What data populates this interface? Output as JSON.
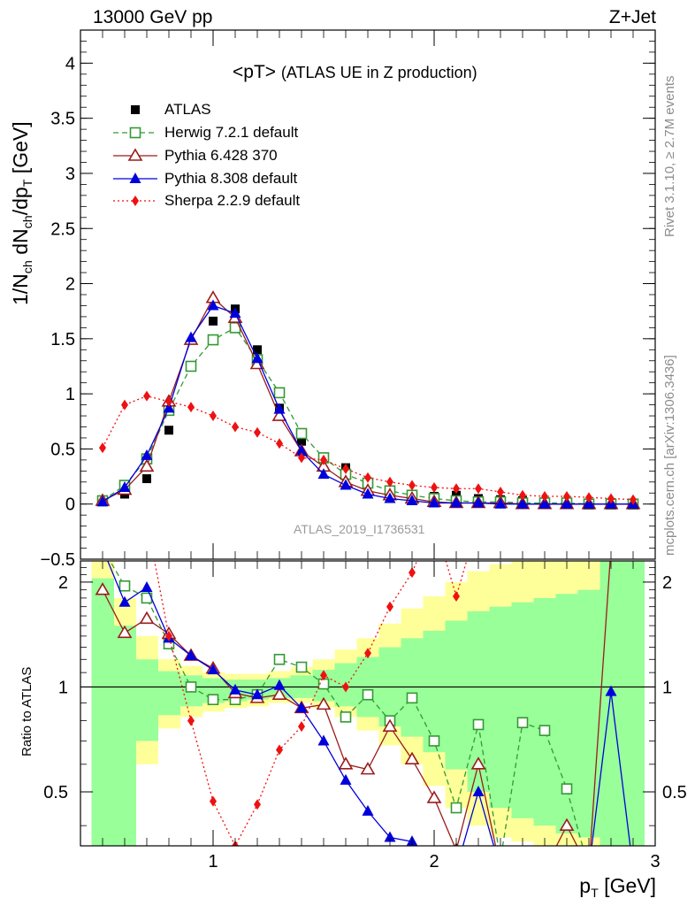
{
  "header": {
    "left": "13000 GeV pp",
    "right": "Z+Jet"
  },
  "plot_title": {
    "main": "<pT>",
    "sub": "(ATLAS UE in Z production)"
  },
  "watermark": "ATLAS_2019_I1736531",
  "side_text": {
    "rivet": "Rivet 3.1.10, ≥ 2.7M events",
    "mcplots": "mcplots.cern.ch [arXiv:1306.3436]"
  },
  "y_label_main": {
    "a": "1/N",
    "a_sub": "ch",
    "b": " dN",
    "b_sub": "ch",
    "c": "/dp",
    "c_sub": "T",
    "unit": " [GeV]"
  },
  "y_label_ratio": "Ratio to ATLAS",
  "x_label": {
    "p": "p",
    "sub": "T",
    "unit": " [GeV]"
  },
  "colors": {
    "atlas": "#000000",
    "herwig": "#339933",
    "pythia6": "#9b1c1c",
    "pythia8": "#0000dd",
    "sherpa": "#ee1111",
    "band_inner": "#99ff99",
    "band_outer": "#ffff99"
  },
  "chart_data": [
    {
      "type": "scatter",
      "panel": "main",
      "xlim": [
        0.4,
        3.0
      ],
      "ylim": [
        -0.5,
        4.3
      ],
      "x_ticks": [
        "1",
        "2",
        "3"
      ],
      "y_ticks": [
        "−0.5",
        "0",
        "0.5",
        "1",
        "1.5",
        "2",
        "2.5",
        "3",
        "3.5",
        "4"
      ],
      "x": [
        0.5,
        0.6,
        0.7,
        0.8,
        0.9,
        1.0,
        1.1,
        1.2,
        1.3,
        1.4,
        1.5,
        1.6,
        1.7,
        1.8,
        1.9,
        2.0,
        2.1,
        2.2,
        2.3,
        2.4,
        2.5,
        2.6,
        2.7,
        2.8,
        2.9
      ],
      "series": [
        {
          "name": "ATLAS",
          "key": "atlas",
          "style": "points",
          "values": [
            0.02,
            0.09,
            0.23,
            0.67,
            1.25,
            1.66,
            1.77,
            1.4,
            0.87,
            0.57,
            0.41,
            0.33,
            0.2,
            0.12,
            0.09,
            0.07,
            0.08,
            0.05,
            0.04,
            0.03,
            0.02,
            0.01,
            0.01,
            0.0,
            0.0
          ]
        },
        {
          "name": "Herwig 7.2.1 default",
          "key": "herwig",
          "style": "dashed",
          "values": [
            0.03,
            0.17,
            0.41,
            0.85,
            1.25,
            1.49,
            1.6,
            1.31,
            1.01,
            0.64,
            0.42,
            0.27,
            0.19,
            0.12,
            0.08,
            0.05,
            0.03,
            0.02,
            0.02,
            0.01,
            0.01,
            0.01,
            0.0,
            0.0,
            0.0
          ]
        },
        {
          "name": "Pythia 6.428 370",
          "key": "pythia6",
          "style": "solid",
          "values": [
            0.03,
            0.13,
            0.34,
            0.93,
            1.49,
            1.87,
            1.69,
            1.27,
            0.8,
            0.48,
            0.34,
            0.2,
            0.12,
            0.08,
            0.05,
            0.02,
            0.01,
            0.01,
            0.01,
            0.0,
            0.0,
            0.0,
            0.0,
            0.0,
            0.0
          ]
        },
        {
          "name": "Pythia 8.308 default",
          "key": "pythia8",
          "style": "solid",
          "values": [
            0.02,
            0.15,
            0.44,
            0.87,
            1.51,
            1.8,
            1.73,
            1.32,
            0.86,
            0.48,
            0.27,
            0.17,
            0.09,
            0.05,
            0.03,
            0.01,
            0.01,
            0.01,
            0.0,
            0.0,
            0.0,
            0.0,
            0.0,
            0.0,
            0.0
          ]
        },
        {
          "name": "Sherpa 2.2.9 default",
          "key": "sherpa",
          "style": "dotted",
          "values": [
            0.51,
            0.9,
            0.98,
            0.93,
            0.88,
            0.8,
            0.7,
            0.65,
            0.55,
            0.42,
            0.4,
            0.32,
            0.24,
            0.2,
            0.17,
            0.15,
            0.14,
            0.14,
            0.11,
            0.08,
            0.07,
            0.07,
            0.06,
            0.05,
            0.04
          ]
        }
      ]
    },
    {
      "type": "scatter",
      "panel": "ratio",
      "xlim": [
        0.4,
        3.0
      ],
      "ylim": [
        0.35,
        2.3
      ],
      "y_scale": "log",
      "x_ticks": [
        "1",
        "2",
        "3"
      ],
      "y_ticks_left": [
        "0.5",
        "1",
        "2"
      ],
      "y_ticks_right": [
        "0.5",
        "1",
        "2"
      ],
      "x": [
        0.5,
        0.6,
        0.7,
        0.8,
        0.9,
        1.0,
        1.1,
        1.2,
        1.3,
        1.4,
        1.5,
        1.6,
        1.7,
        1.8,
        1.9,
        2.0,
        2.1,
        2.2,
        2.3,
        2.4,
        2.5,
        2.6,
        2.7,
        2.8,
        2.9
      ],
      "band_inner": {
        "lo": [
          0.35,
          0.35,
          0.7,
          0.83,
          0.88,
          0.9,
          0.91,
          0.92,
          0.93,
          0.93,
          0.91,
          0.88,
          0.82,
          0.77,
          0.72,
          0.65,
          0.58,
          0.5,
          0.45,
          0.42,
          0.4,
          0.38,
          0.37,
          0.35,
          0.35
        ],
        "hi": [
          2.05,
          1.5,
          1.2,
          1.11,
          1.08,
          1.06,
          1.05,
          1.05,
          1.06,
          1.08,
          1.12,
          1.17,
          1.22,
          1.3,
          1.38,
          1.45,
          1.55,
          1.65,
          1.7,
          1.75,
          1.8,
          1.85,
          1.9,
          2.3,
          2.3
        ]
      },
      "band_outer": {
        "lo": [
          0.35,
          0.35,
          0.6,
          0.76,
          0.82,
          0.85,
          0.87,
          0.88,
          0.9,
          0.9,
          0.87,
          0.82,
          0.75,
          0.68,
          0.6,
          0.52,
          0.45,
          0.4,
          0.37,
          0.36,
          0.35,
          0.35,
          0.35,
          0.35,
          0.35
        ],
        "hi": [
          2.3,
          1.8,
          1.4,
          1.2,
          1.15,
          1.1,
          1.09,
          1.09,
          1.11,
          1.14,
          1.2,
          1.28,
          1.38,
          1.52,
          1.68,
          1.82,
          2.0,
          2.15,
          2.25,
          2.3,
          2.3,
          2.3,
          2.3,
          2.3,
          2.3
        ]
      },
      "series": [
        {
          "name": "Herwig 7.2.1 default",
          "key": "herwig",
          "style": "dashed",
          "values": [
            2.5,
            1.95,
            1.8,
            1.33,
            1.0,
            0.92,
            0.92,
            0.95,
            1.2,
            1.14,
            1.02,
            0.82,
            0.95,
            0.8,
            0.93,
            0.7,
            0.45,
            0.78,
            0.32,
            0.79,
            0.75,
            0.51,
            0.3,
            0.3,
            0.3
          ]
        },
        {
          "name": "Pythia 6.428 370",
          "key": "pythia6",
          "style": "solid",
          "values": [
            1.9,
            1.43,
            1.57,
            1.42,
            1.23,
            1.13,
            0.96,
            0.93,
            0.95,
            0.87,
            0.89,
            0.6,
            0.58,
            0.77,
            0.62,
            0.48,
            0.34,
            0.6,
            0.3,
            0.3,
            0.3,
            0.4,
            0.3,
            2.5,
            2.5
          ]
        },
        {
          "name": "Pythia 8.308 default",
          "key": "pythia8",
          "style": "solid",
          "values": [
            2.5,
            1.75,
            1.93,
            1.38,
            1.23,
            1.12,
            0.98,
            0.95,
            1.01,
            0.87,
            0.7,
            0.54,
            0.44,
            0.37,
            0.36,
            0.3,
            0.3,
            0.5,
            0.3,
            0.3,
            0.3,
            0.3,
            0.3,
            0.97,
            0.3
          ]
        },
        {
          "name": "Sherpa 2.2.9 default",
          "key": "sherpa",
          "style": "dotted",
          "values": [
            3.0,
            3.0,
            3.0,
            1.4,
            0.8,
            0.47,
            0.35,
            0.46,
            0.66,
            0.77,
            1.08,
            1.0,
            1.25,
            1.7,
            2.13,
            3.0,
            1.82,
            3.0,
            3.0,
            3.0,
            3.0,
            3.0,
            3.0,
            3.0,
            3.0
          ]
        }
      ]
    }
  ]
}
